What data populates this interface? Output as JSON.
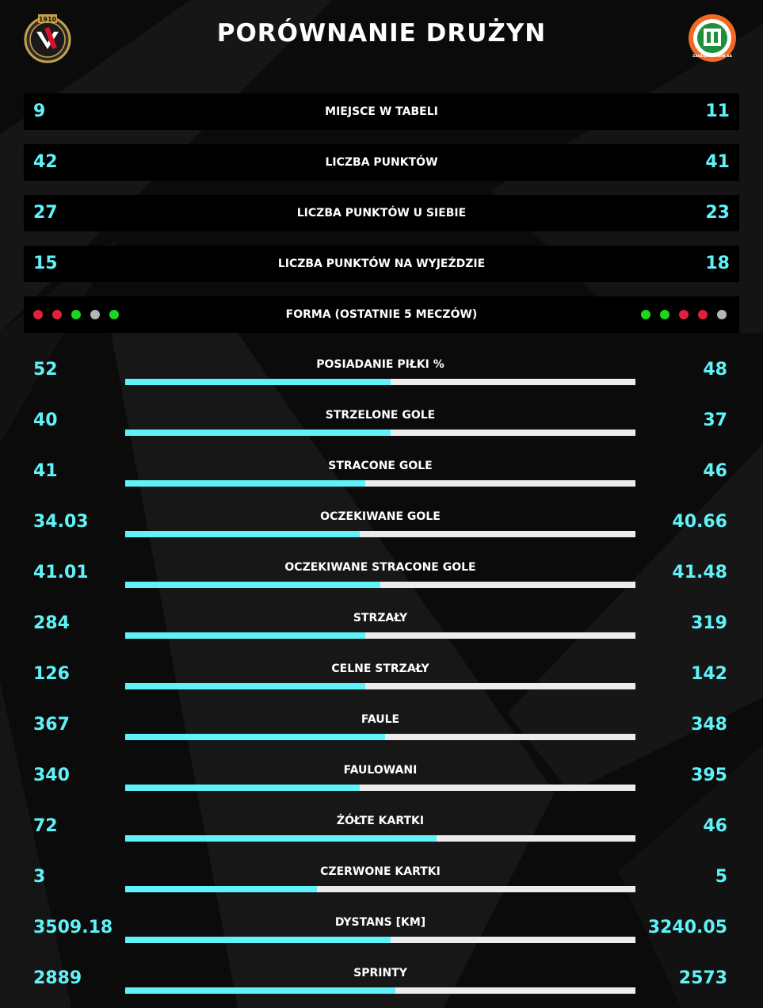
{
  "title": "PORÓWNANIE DRUŻYN",
  "colors": {
    "accent": "#5ff3f8",
    "bar_track": "#ececec",
    "win": "#1bd61b",
    "loss": "#e0213e",
    "draw": "#b5b5b5"
  },
  "teams": {
    "home": {
      "crest_year": "1910",
      "crest_icon": "widzew-crest-icon"
    },
    "away": {
      "crest_text": "ZAGŁĘBIE LUBIN SA",
      "crest_icon": "zaglebie-crest-icon"
    }
  },
  "summary": [
    {
      "label": "MIEJSCE W TABELI",
      "home": "9",
      "away": "11"
    },
    {
      "label": "LICZBA PUNKTÓW",
      "home": "42",
      "away": "41"
    },
    {
      "label": "LICZBA PUNKTÓW U SIEBIE",
      "home": "27",
      "away": "23"
    },
    {
      "label": "LICZBA PUNKTÓW NA WYJEŹDZIE",
      "home": "15",
      "away": "18"
    }
  ],
  "form": {
    "label": "FORMA (OSTATNIE 5 MECZÓW)",
    "home": [
      "loss",
      "loss",
      "win",
      "draw",
      "win"
    ],
    "away": [
      "win",
      "win",
      "loss",
      "loss",
      "draw"
    ]
  },
  "stats": [
    {
      "label": "POSIADANIE PIŁKI %",
      "home": "52",
      "away": "48",
      "home_share": 0.52
    },
    {
      "label": "STRZELONE GOLE",
      "home": "40",
      "away": "37",
      "home_share": 0.52
    },
    {
      "label": "STRACONE GOLE",
      "home": "41",
      "away": "46",
      "home_share": 0.47
    },
    {
      "label": "OCZEKIWANE GOLE",
      "home": "34.03",
      "away": "40.66",
      "home_share": 0.46
    },
    {
      "label": "OCZEKIWANE STRACONE GOLE",
      "home": "41.01",
      "away": "41.48",
      "home_share": 0.5
    },
    {
      "label": "STRZAŁY",
      "home": "284",
      "away": "319",
      "home_share": 0.47
    },
    {
      "label": "CELNE STRZAŁY",
      "home": "126",
      "away": "142",
      "home_share": 0.47
    },
    {
      "label": "FAULE",
      "home": "367",
      "away": "348",
      "home_share": 0.51
    },
    {
      "label": "FAULOWANI",
      "home": "340",
      "away": "395",
      "home_share": 0.46
    },
    {
      "label": "ŻÓŁTE KARTKI",
      "home": "72",
      "away": "46",
      "home_share": 0.61
    },
    {
      "label": "CZERWONE KARTKI",
      "home": "3",
      "away": "5",
      "home_share": 0.375
    },
    {
      "label": "DYSTANS [KM]",
      "home": "3509.18",
      "away": "3240.05",
      "home_share": 0.52
    },
    {
      "label": "SPRINTY",
      "home": "2889",
      "away": "2573",
      "home_share": 0.53
    }
  ]
}
